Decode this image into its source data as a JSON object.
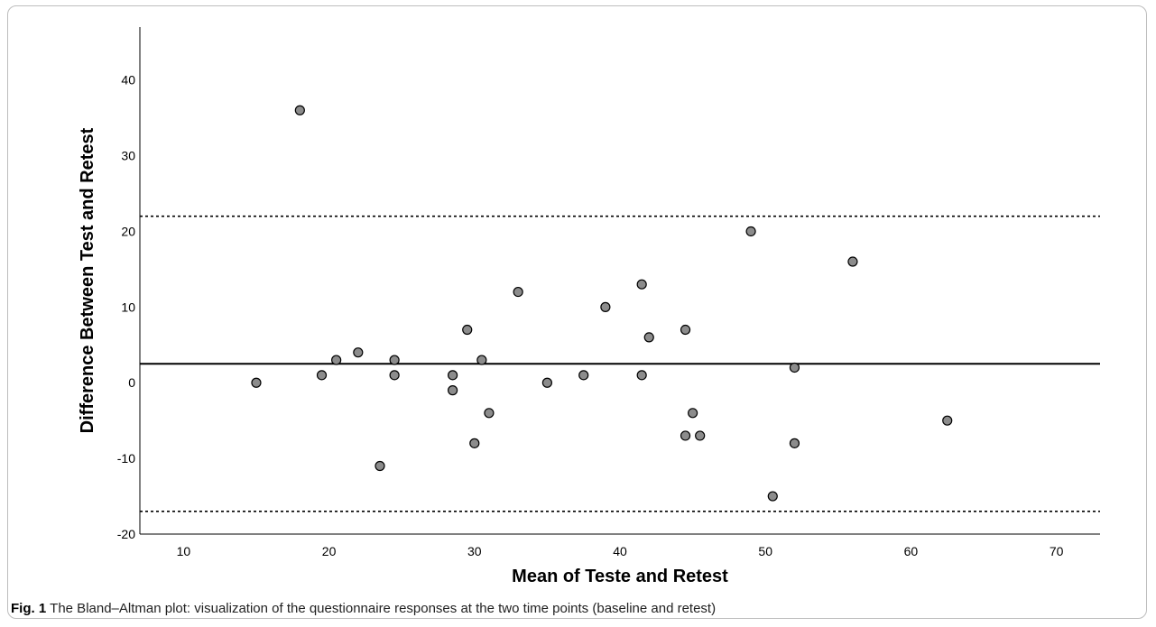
{
  "figure": {
    "label": "Fig. 1",
    "caption": "The Bland–Altman plot: visualization of the questionnaire responses at the two time points (baseline and retest)"
  },
  "chart_data": {
    "type": "scatter",
    "title": "",
    "xlabel": "Mean of Teste and Retest",
    "ylabel": "Difference Between Test  and Retest",
    "xlim": [
      7,
      73
    ],
    "ylim": [
      -20,
      47
    ],
    "xticks": [
      10,
      20,
      30,
      40,
      50,
      60,
      70
    ],
    "yticks": [
      -20,
      -10,
      0,
      10,
      20,
      30,
      40
    ],
    "grid": false,
    "legend": "none",
    "reference_lines": [
      {
        "y": 2.5,
        "style": "solid"
      },
      {
        "y": 22,
        "style": "dotted"
      },
      {
        "y": -17,
        "style": "dotted"
      }
    ],
    "marker_color": "#8c8c8c",
    "points": [
      {
        "x": 15,
        "y": 0
      },
      {
        "x": 18,
        "y": 36
      },
      {
        "x": 19.5,
        "y": 1
      },
      {
        "x": 20.5,
        "y": 3
      },
      {
        "x": 22,
        "y": 4
      },
      {
        "x": 23.5,
        "y": -11
      },
      {
        "x": 24.5,
        "y": 3
      },
      {
        "x": 24.5,
        "y": 1
      },
      {
        "x": 28.5,
        "y": 1
      },
      {
        "x": 28.5,
        "y": -1
      },
      {
        "x": 29.5,
        "y": 7
      },
      {
        "x": 30,
        "y": -8
      },
      {
        "x": 30.5,
        "y": 3
      },
      {
        "x": 31,
        "y": -4
      },
      {
        "x": 33,
        "y": 12
      },
      {
        "x": 35,
        "y": 0
      },
      {
        "x": 37.5,
        "y": 1
      },
      {
        "x": 39,
        "y": 10
      },
      {
        "x": 41.5,
        "y": 13
      },
      {
        "x": 41.5,
        "y": 1
      },
      {
        "x": 42,
        "y": 6
      },
      {
        "x": 44.5,
        "y": 7
      },
      {
        "x": 44.5,
        "y": -7
      },
      {
        "x": 45,
        "y": -4
      },
      {
        "x": 45.5,
        "y": -7
      },
      {
        "x": 49,
        "y": 20
      },
      {
        "x": 50.5,
        "y": -15
      },
      {
        "x": 52,
        "y": 2
      },
      {
        "x": 52,
        "y": -8
      },
      {
        "x": 56,
        "y": 16
      },
      {
        "x": 62.5,
        "y": -5
      }
    ]
  }
}
